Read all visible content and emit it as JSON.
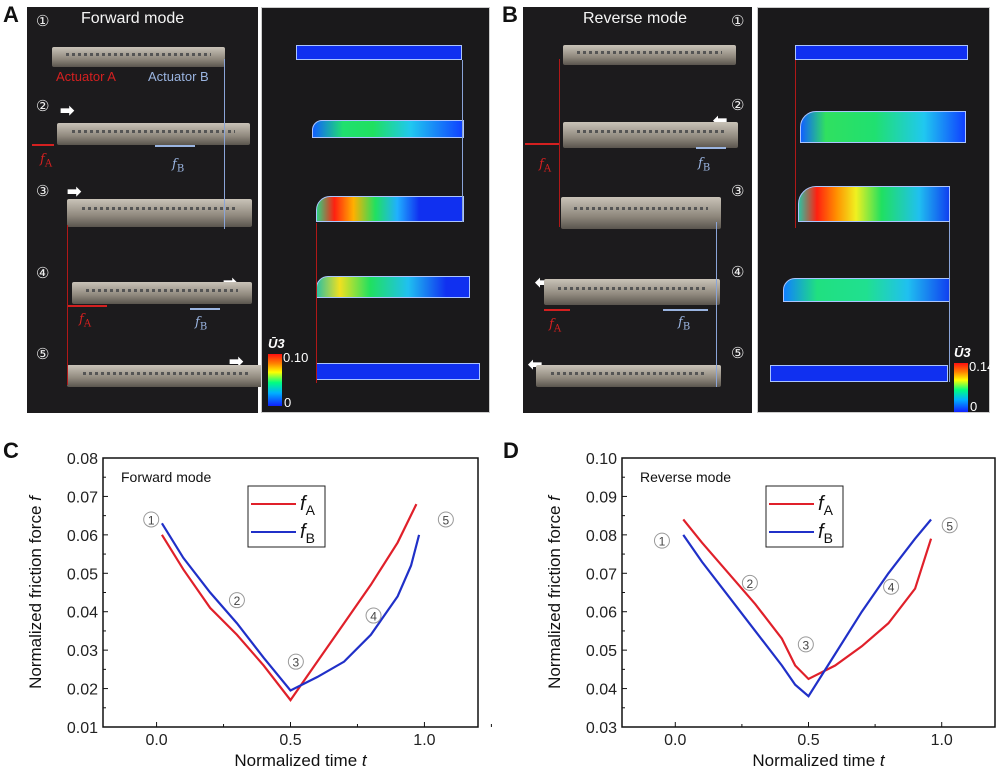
{
  "panel_letters": {
    "a": "A",
    "b": "B",
    "c": "C",
    "d": "D"
  },
  "panel_a": {
    "mode": "Forward mode",
    "steps": [
      "①",
      "②",
      "③",
      "④",
      "⑤"
    ],
    "actuator_a": "Actuator A",
    "actuator_b": "Actuator B",
    "f_a": "fA",
    "f_b": "fB",
    "colorbar": {
      "label": "Ū3",
      "max": "0.10",
      "min": "0"
    }
  },
  "panel_b": {
    "mode": "Reverse mode",
    "steps": [
      "①",
      "②",
      "③",
      "④",
      "⑤"
    ],
    "f_a": "fA",
    "f_b": "fB",
    "colorbar": {
      "label": "Ū3",
      "max": "0.14",
      "min": "0"
    }
  },
  "colors": {
    "fA": "#e0202a",
    "fB": "#2030c8"
  },
  "chart_data": [
    {
      "type": "line",
      "title": "",
      "annotation": "Forward mode",
      "xlabel": "Normalized time t",
      "ylabel": "Normalized friction force f",
      "xlim": [
        -0.2,
        1.2
      ],
      "ylim": [
        0.01,
        0.08
      ],
      "xticks": [
        0.0,
        0.5,
        1.0
      ],
      "xtick_labels": [
        "0.0",
        "0.5",
        "1.0"
      ],
      "yticks": [
        0.01,
        0.02,
        0.03,
        0.04,
        0.05,
        0.06,
        0.07,
        0.08
      ],
      "ytick_labels": [
        "0.01",
        "0.02",
        "0.03",
        "0.04",
        "0.05",
        "0.06",
        "0.07",
        "0.08"
      ],
      "legend": "top-center",
      "series": [
        {
          "name": "fA",
          "x": [
            0.02,
            0.1,
            0.2,
            0.3,
            0.4,
            0.5,
            0.6,
            0.7,
            0.8,
            0.9,
            0.97
          ],
          "y": [
            0.06,
            0.051,
            0.041,
            0.034,
            0.026,
            0.017,
            0.027,
            0.037,
            0.047,
            0.058,
            0.068
          ]
        },
        {
          "name": "fB",
          "x": [
            0.02,
            0.1,
            0.2,
            0.3,
            0.4,
            0.5,
            0.6,
            0.7,
            0.8,
            0.9,
            0.95,
            0.98
          ],
          "y": [
            0.063,
            0.054,
            0.045,
            0.037,
            0.028,
            0.0195,
            0.023,
            0.027,
            0.034,
            0.044,
            0.052,
            0.06
          ]
        }
      ],
      "markers": [
        {
          "label": "①",
          "x": -0.02,
          "y": 0.064
        },
        {
          "label": "②",
          "x": 0.3,
          "y": 0.043
        },
        {
          "label": "③",
          "x": 0.52,
          "y": 0.027
        },
        {
          "label": "④",
          "x": 0.81,
          "y": 0.039
        },
        {
          "label": "⑤",
          "x": 1.08,
          "y": 0.064
        }
      ]
    },
    {
      "type": "line",
      "title": "",
      "annotation": "Reverse mode",
      "xlabel": "Normalized time t",
      "ylabel": "Normalized friction force f",
      "xlim": [
        -0.2,
        1.2
      ],
      "ylim": [
        0.03,
        0.1
      ],
      "xticks": [
        0.0,
        0.5,
        1.0
      ],
      "xtick_labels": [
        "0.0",
        "0.5",
        "1.0"
      ],
      "yticks": [
        0.03,
        0.04,
        0.05,
        0.06,
        0.07,
        0.08,
        0.09,
        0.1
      ],
      "ytick_labels": [
        "0.03",
        "0.04",
        "0.05",
        "0.06",
        "0.07",
        "0.08",
        "0.09",
        "0.10"
      ],
      "legend": "top-center",
      "series": [
        {
          "name": "fA",
          "x": [
            0.03,
            0.1,
            0.2,
            0.3,
            0.4,
            0.45,
            0.5,
            0.6,
            0.7,
            0.8,
            0.9,
            0.96
          ],
          "y": [
            0.084,
            0.078,
            0.07,
            0.062,
            0.053,
            0.046,
            0.0425,
            0.046,
            0.051,
            0.057,
            0.066,
            0.079
          ]
        },
        {
          "name": "fB",
          "x": [
            0.03,
            0.1,
            0.2,
            0.3,
            0.4,
            0.45,
            0.5,
            0.6,
            0.7,
            0.8,
            0.9,
            0.96
          ],
          "y": [
            0.08,
            0.073,
            0.064,
            0.055,
            0.046,
            0.041,
            0.038,
            0.049,
            0.06,
            0.07,
            0.079,
            0.084
          ]
        }
      ],
      "markers": [
        {
          "label": "①",
          "x": -0.05,
          "y": 0.0785
        },
        {
          "label": "②",
          "x": 0.28,
          "y": 0.0675
        },
        {
          "label": "③",
          "x": 0.49,
          "y": 0.0515
        },
        {
          "label": "④",
          "x": 0.81,
          "y": 0.0665
        },
        {
          "label": "⑤",
          "x": 1.03,
          "y": 0.0825
        }
      ]
    }
  ]
}
